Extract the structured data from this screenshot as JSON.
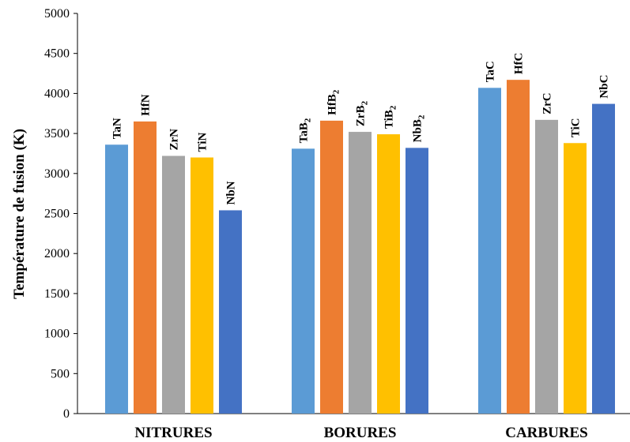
{
  "chart_data": {
    "type": "bar",
    "title": "",
    "xlabel": "",
    "ylabel": "Température de fusion (K)",
    "ylim": [
      0,
      5000
    ],
    "yticks": [
      0,
      500,
      1000,
      1500,
      2000,
      2500,
      3000,
      3500,
      4000,
      4500,
      5000
    ],
    "grid": false,
    "legend": "none",
    "groups": [
      {
        "category": "NITRURES",
        "bars": [
          {
            "label": "TaN",
            "value": 3360,
            "color": "#5B9BD5"
          },
          {
            "label": "HfN",
            "value": 3650,
            "color": "#ED7D31"
          },
          {
            "label": "ZrN",
            "value": 3220,
            "color": "#A5A5A5"
          },
          {
            "label": "TiN",
            "value": 3200,
            "color": "#FFC000"
          },
          {
            "label": "NbN",
            "value": 2540,
            "color": "#4472C4"
          }
        ]
      },
      {
        "category": "BORURES",
        "bars": [
          {
            "label": "TaB",
            "sub": "2",
            "value": 3310,
            "color": "#5B9BD5"
          },
          {
            "label": "HfB",
            "sub": "2",
            "value": 3660,
            "color": "#ED7D31"
          },
          {
            "label": "ZrB",
            "sub": "2",
            "value": 3520,
            "color": "#A5A5A5"
          },
          {
            "label": "TiB",
            "sub": "2",
            "value": 3490,
            "color": "#FFC000"
          },
          {
            "label": "NbB",
            "sub": "2",
            "value": 3320,
            "color": "#4472C4"
          }
        ]
      },
      {
        "category": "CARBURES",
        "bars": [
          {
            "label": "TaC",
            "value": 4070,
            "color": "#5B9BD5"
          },
          {
            "label": "HfC",
            "value": 4170,
            "color": "#ED7D31"
          },
          {
            "label": "ZrC",
            "value": 3670,
            "color": "#A5A5A5"
          },
          {
            "label": "TiC",
            "value": 3380,
            "color": "#FFC000"
          },
          {
            "label": "NbC",
            "value": 3870,
            "color": "#4472C4"
          }
        ]
      }
    ]
  }
}
